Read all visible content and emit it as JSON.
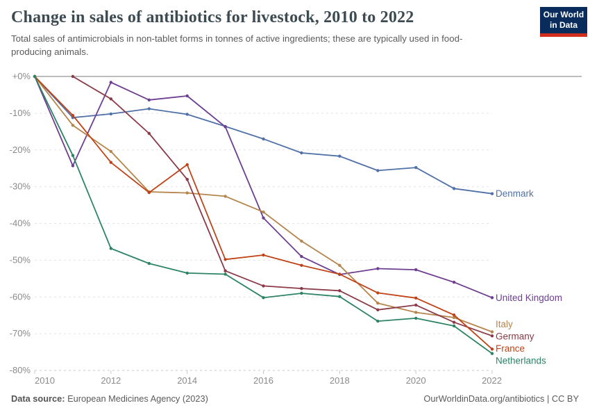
{
  "header": {
    "title": "Change in sales of antibiotics for livestock, 2010 to 2022",
    "subtitle": "Total sales of antimicrobials in non-tablet forms in tonnes of active ingredients; these are typically used in food-producing animals."
  },
  "logo": {
    "line1": "Our World",
    "line2": "in Data",
    "bg_color": "#092C5C",
    "accent_color": "#D22E1D"
  },
  "chart_data": {
    "type": "line",
    "title": "Change in sales of antibiotics for livestock, 2010 to 2022",
    "xlabel": "",
    "ylabel": "",
    "unit": "%",
    "ylim": [
      -80,
      0
    ],
    "grid": "horizontal-dashed",
    "legend_position": "right-end-labels",
    "x": [
      2010,
      2011,
      2012,
      2013,
      2014,
      2015,
      2016,
      2017,
      2018,
      2019,
      2020,
      2021,
      2022
    ],
    "x_tick_labels": [
      "2010",
      "2012",
      "2014",
      "2016",
      "2018",
      "2020",
      "2022"
    ],
    "x_ticks": [
      2010,
      2012,
      2014,
      2016,
      2018,
      2020,
      2022
    ],
    "y_tick_labels": [
      "+0%",
      "-10%",
      "-20%",
      "-30%",
      "-40%",
      "-50%",
      "-60%",
      "-70%",
      "-80%"
    ],
    "y_ticks": [
      0,
      -10,
      -20,
      -30,
      -40,
      -50,
      -60,
      -70,
      -80
    ],
    "series": [
      {
        "name": "Denmark",
        "color": "#5070A8",
        "values": [
          0,
          -11.2,
          -10.2,
          -8.8,
          -10.3,
          -13.6,
          -17.0,
          -20.8,
          -21.7,
          -25.6,
          -24.8,
          -30.5,
          -31.9
        ]
      },
      {
        "name": "United Kingdom",
        "color": "#6D3E91",
        "values": [
          0,
          -24.3,
          -1.6,
          -6.4,
          -5.3,
          -13.7,
          -38.5,
          -49.0,
          -53.9,
          -52.3,
          -52.6,
          -56.0,
          -60.2
        ]
      },
      {
        "name": "Italy",
        "color": "#B5854B",
        "values": [
          0,
          -13.3,
          -20.4,
          -31.4,
          -31.7,
          -32.6,
          -36.9,
          -44.8,
          -51.4,
          -61.7,
          -64.2,
          -65.6,
          -69.5
        ]
      },
      {
        "name": "Germany",
        "color": "#8B3A48",
        "values": [
          null,
          0,
          -6.1,
          -15.5,
          -28.0,
          -52.9,
          -57.0,
          -57.7,
          -58.3,
          -63.5,
          -62.2,
          -66.9,
          -70.6
        ]
      },
      {
        "name": "France",
        "color": "#BF4317",
        "values": [
          0,
          -10.6,
          -23.4,
          -31.6,
          -24.0,
          -49.8,
          -48.6,
          -51.4,
          -53.8,
          -58.9,
          -60.3,
          -64.9,
          -74.2
        ]
      },
      {
        "name": "Netherlands",
        "color": "#2C8465",
        "values": [
          0,
          -21.5,
          -46.8,
          -50.9,
          -53.5,
          -53.8,
          -60.2,
          -59.0,
          -59.9,
          -66.6,
          -65.8,
          -67.9,
          -75.4
        ]
      }
    ]
  },
  "footer": {
    "source_label": "Data source:",
    "source_value": " European Medicines Agency (2023)",
    "link": "OurWorldinData.org/antibiotics",
    "license": " | CC BY"
  }
}
